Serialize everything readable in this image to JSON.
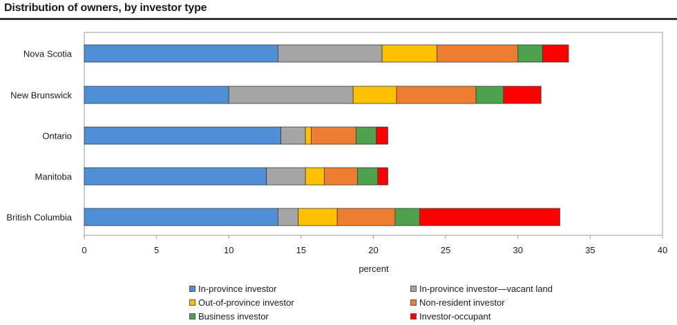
{
  "title": "Distribution of owners, by investor type",
  "chart_data": {
    "type": "bar",
    "orientation": "horizontal",
    "stacked": true,
    "categories": [
      "Nova Scotia",
      "New Brunswick",
      "Ontario",
      "Manitoba",
      "British Columbia"
    ],
    "series": [
      {
        "name": "In-province investor",
        "color": "#4f8fd6",
        "values": [
          13.4,
          10.0,
          13.6,
          12.6,
          13.4
        ]
      },
      {
        "name": "In-province investor—vacant land",
        "color": "#a5a5a5",
        "values": [
          7.2,
          8.6,
          1.7,
          2.7,
          1.4
        ]
      },
      {
        "name": "Out-of-province investor",
        "color": "#ffc000",
        "values": [
          3.8,
          3.0,
          0.4,
          1.3,
          2.7
        ]
      },
      {
        "name": "Non-resident investor",
        "color": "#ed7d31",
        "values": [
          5.6,
          5.5,
          3.1,
          2.3,
          4.0
        ]
      },
      {
        "name": "Business investor",
        "color": "#4ea24e",
        "values": [
          1.7,
          1.9,
          1.4,
          1.4,
          1.7
        ]
      },
      {
        "name": "Investor-occupant",
        "color": "#ff0000",
        "values": [
          1.8,
          2.6,
          0.8,
          0.7,
          9.7
        ]
      }
    ],
    "xlabel": "percent",
    "ylabel": "",
    "xlim": [
      0,
      40
    ],
    "xticks": [
      0,
      5,
      10,
      15,
      20,
      25,
      30,
      35,
      40
    ],
    "grid": false,
    "legend_position": "bottom"
  }
}
